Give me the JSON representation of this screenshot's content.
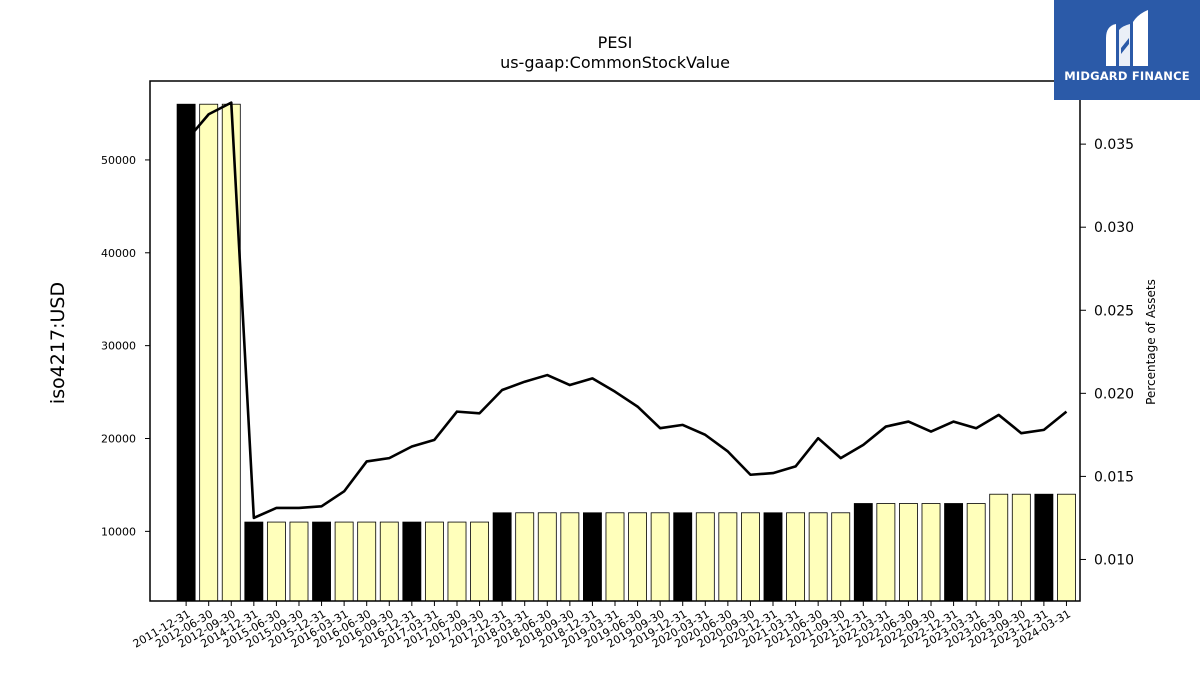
{
  "chart_data": {
    "type": "bar",
    "title": "PESI",
    "subtitle": "us-gaap:CommonStockValue",
    "ylabel": "iso4217:USD",
    "y2label": "Percentage of Assets",
    "ylim": [
      2500,
      58500
    ],
    "y2lim": [
      0.0075,
      0.0388
    ],
    "yticks": [
      10000,
      20000,
      30000,
      40000,
      50000
    ],
    "y2ticks": [
      0.01,
      0.015,
      0.02,
      0.025,
      0.03,
      0.035
    ],
    "y2tick_labels": [
      "0.010",
      "0.015",
      "0.020",
      "0.025",
      "0.030",
      "0.035"
    ],
    "categories": [
      "2011-12-31",
      "2012-06-30",
      "2012-09-30",
      "2014-12-31",
      "2015-06-30",
      "2015-09-30",
      "2015-12-31",
      "2016-03-31",
      "2016-06-30",
      "2016-09-30",
      "2016-12-31",
      "2017-03-31",
      "2017-06-30",
      "2017-09-30",
      "2017-12-31",
      "2018-03-31",
      "2018-06-30",
      "2018-09-30",
      "2018-12-31",
      "2019-03-31",
      "2019-06-30",
      "2019-09-30",
      "2019-12-31",
      "2020-03-31",
      "2020-06-30",
      "2020-09-30",
      "2020-12-31",
      "2021-03-31",
      "2021-06-30",
      "2021-09-30",
      "2021-12-31",
      "2022-03-31",
      "2022-06-30",
      "2022-09-30",
      "2022-12-31",
      "2023-03-31",
      "2023-06-30",
      "2023-09-30",
      "2023-12-31",
      "2024-03-31"
    ],
    "values": [
      56000,
      56000,
      56000,
      11000,
      11000,
      11000,
      11000,
      11000,
      11000,
      11000,
      11000,
      11000,
      11000,
      11000,
      12000,
      12000,
      12000,
      12000,
      12000,
      12000,
      12000,
      12000,
      12000,
      12000,
      12000,
      12000,
      12000,
      12000,
      12000,
      12000,
      13000,
      13000,
      13000,
      13000,
      13000,
      13000,
      14000,
      14000,
      14000,
      14000
    ],
    "bar_highlight": [
      true,
      false,
      false,
      true,
      false,
      false,
      true,
      false,
      false,
      false,
      true,
      false,
      false,
      false,
      true,
      false,
      false,
      false,
      true,
      false,
      false,
      false,
      true,
      false,
      false,
      false,
      true,
      false,
      false,
      false,
      true,
      false,
      false,
      false,
      true,
      false,
      false,
      false,
      true,
      false
    ],
    "line_values": [
      0.0352,
      0.0368,
      0.0375,
      0.0125,
      0.0131,
      0.0131,
      0.0132,
      0.0141,
      0.0159,
      0.0161,
      0.0168,
      0.0172,
      0.0189,
      0.0188,
      0.0202,
      0.0207,
      0.0211,
      0.0205,
      0.0209,
      0.0201,
      0.0192,
      0.0179,
      0.0181,
      0.0175,
      0.0165,
      0.0151,
      0.0152,
      0.0156,
      0.0173,
      0.0161,
      0.0169,
      0.018,
      0.0183,
      0.0177,
      0.0183,
      0.0179,
      0.0187,
      0.0176,
      0.0178,
      0.0189
    ],
    "colors": {
      "bar_fill": "#ffffbb",
      "bar_highlight_fill": "#000000",
      "bar_edge": "#000000",
      "line": "#000000"
    },
    "grid": false,
    "legend": "none"
  },
  "logo": {
    "text": "MIDGARD FINANCE",
    "background": "#2b5aa8"
  }
}
